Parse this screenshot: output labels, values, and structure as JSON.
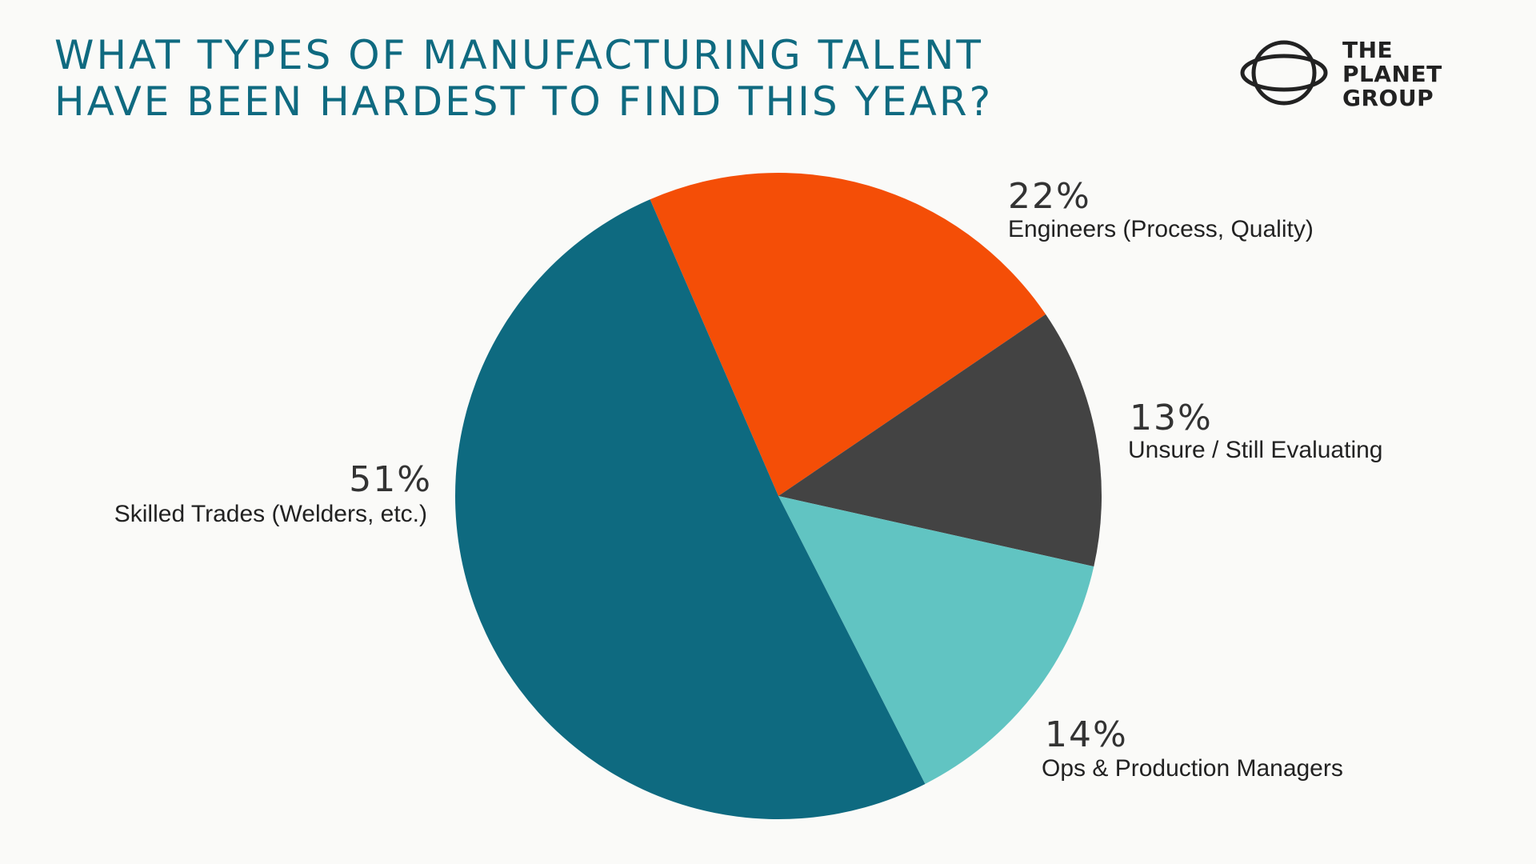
{
  "header": {
    "title_line1": "WHAT TYPES OF MANUFACTURING TALENT",
    "title_line2": "HAVE BEEN HARDEST TO FIND THIS YEAR?"
  },
  "brand": {
    "line1": "THE",
    "line2": "PLANET",
    "line3": "GROUP",
    "icon": "planet-logo-icon"
  },
  "colors": {
    "title": "#0f6a80",
    "skilled_trades": "#0e6a80",
    "engineers": "#f44e07",
    "unsure": "#434343",
    "ops_managers": "#61c4c2"
  },
  "chart_data": {
    "type": "pie",
    "title": "WHAT TYPES OF MANUFACTURING TALENT HAVE BEEN HARDEST TO FIND THIS YEAR?",
    "slices": [
      {
        "key": "engineers",
        "label": "Engineers (Process, Quality)",
        "value": 22,
        "value_label": "22%",
        "color": "#f44e07"
      },
      {
        "key": "unsure",
        "label": "Unsure / Still Evaluating",
        "value": 13,
        "value_label": "13%",
        "color": "#434343"
      },
      {
        "key": "ops",
        "label": "Ops & Production Managers",
        "value": 14,
        "value_label": "14%",
        "color": "#61c4c2"
      },
      {
        "key": "trades",
        "label": "Skilled Trades (Welders, etc.)",
        "value": 51,
        "value_label": "51%",
        "color": "#0e6a80"
      }
    ],
    "start_angle_deg": -23.4,
    "direction": "clockwise"
  }
}
